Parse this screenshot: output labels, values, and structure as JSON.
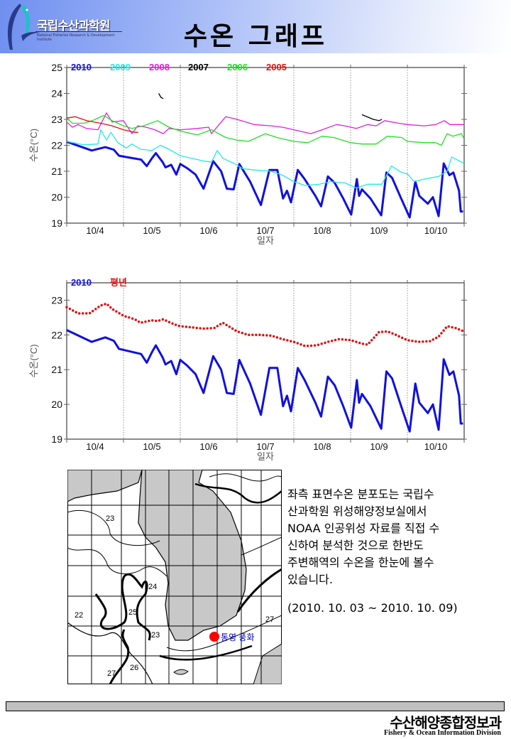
{
  "header": {
    "logo_text": "국립수산과학원",
    "logo_subtext": "National Fisheries Research & Development Institute",
    "title": "수온 그래프"
  },
  "chart_data": [
    {
      "type": "line",
      "title": "",
      "xlabel": "일자",
      "ylabel": "수온(°C)",
      "xlim": [
        "10/4 00:00",
        "10/11 00:00"
      ],
      "ylim": [
        19,
        25
      ],
      "yticks": [
        19,
        20,
        21,
        22,
        23,
        24,
        25
      ],
      "xtick_labels": [
        "10/4",
        "10/5",
        "10/6",
        "10/7",
        "10/8",
        "10/9",
        "10/10"
      ],
      "grid": "vertical dotted at day boundaries",
      "legend": "top-left",
      "x_unit": "day of October (decimal)",
      "series": [
        {
          "name": "2010",
          "color": "#1010e0",
          "width": 3,
          "x": [
            4.0,
            4.44,
            4.68,
            4.83,
            4.92,
            5.02,
            5.31,
            5.41,
            5.5,
            5.57,
            5.69,
            5.74,
            5.84,
            5.93,
            6.0,
            6.12,
            6.27,
            6.41,
            6.58,
            6.72,
            6.82,
            6.94,
            7.04,
            7.23,
            7.42,
            7.57,
            7.71,
            7.81,
            7.88,
            7.95,
            8.07,
            8.19,
            8.38,
            8.48,
            8.6,
            8.72,
            8.87,
            9.01,
            9.11,
            9.15,
            9.2,
            9.35,
            9.54,
            9.63,
            9.73,
            9.88,
            10.04,
            10.14,
            10.21,
            10.36,
            10.45,
            10.55,
            10.64,
            10.74,
            10.81,
            10.91,
            10.94,
            10.98
          ],
          "y": [
            22.14,
            21.8,
            21.93,
            21.83,
            21.6,
            21.56,
            21.45,
            21.2,
            21.5,
            21.7,
            21.35,
            21.15,
            21.25,
            20.87,
            21.28,
            21.12,
            20.87,
            20.33,
            21.39,
            21.0,
            20.33,
            20.3,
            21.28,
            20.6,
            19.7,
            21.05,
            21.05,
            19.95,
            20.25,
            19.8,
            21.05,
            20.7,
            20.05,
            19.65,
            20.8,
            20.55,
            19.95,
            19.33,
            20.7,
            20.05,
            20.3,
            19.95,
            19.3,
            20.95,
            20.75,
            20.0,
            19.22,
            20.6,
            20.05,
            19.75,
            20.0,
            19.27,
            21.3,
            20.85,
            20.95,
            20.25,
            19.45,
            19.45
          ]
        },
        {
          "name": "2009",
          "color": "#22e8e8",
          "width": 1.3,
          "x": [
            4.0,
            4.3,
            4.55,
            4.6,
            4.7,
            4.78,
            4.9,
            5.05,
            5.15,
            5.3,
            5.5,
            5.65,
            5.8,
            6.0,
            6.2,
            6.4,
            6.55,
            6.65,
            6.75,
            6.95,
            7.1,
            7.3,
            7.6,
            7.8,
            8.0,
            8.2,
            8.45,
            8.65,
            8.9,
            9.1,
            9.3,
            9.55,
            9.72,
            9.9,
            10.0,
            10.12,
            10.3,
            10.55,
            10.7,
            10.78,
            11.0
          ],
          "y": [
            22.15,
            22.02,
            22.05,
            22.6,
            22.2,
            22.5,
            22.1,
            21.9,
            22.05,
            21.85,
            21.8,
            22.0,
            21.85,
            21.6,
            21.5,
            21.4,
            21.35,
            21.8,
            21.5,
            21.3,
            21.1,
            21.05,
            21.0,
            20.85,
            20.6,
            20.45,
            20.5,
            20.6,
            20.55,
            20.35,
            20.5,
            20.5,
            21.2,
            20.95,
            20.9,
            20.6,
            20.7,
            20.8,
            21.0,
            21.55,
            21.3
          ]
        },
        {
          "name": "2008",
          "color": "#e020e0",
          "width": 1.3,
          "x": [
            4.0,
            4.1,
            4.2,
            4.35,
            4.55,
            4.7,
            4.8,
            5.0,
            5.15,
            5.25,
            5.4,
            5.55,
            5.7,
            5.8,
            6.0,
            6.3,
            6.5,
            6.55,
            6.8,
            7.0,
            7.3,
            7.6,
            7.8,
            8.0,
            8.3,
            8.5,
            8.75,
            8.9,
            9.1,
            9.3,
            9.45,
            9.6,
            9.85,
            10.0,
            10.3,
            10.5,
            10.65,
            10.75,
            11.0
          ],
          "y": [
            22.9,
            22.7,
            22.8,
            22.65,
            22.6,
            23.25,
            22.9,
            22.95,
            22.45,
            22.75,
            22.7,
            22.6,
            22.45,
            22.65,
            22.6,
            22.65,
            22.7,
            22.45,
            23.1,
            23.0,
            22.8,
            22.75,
            22.7,
            22.6,
            22.45,
            22.6,
            22.8,
            22.75,
            22.65,
            22.8,
            22.75,
            22.95,
            22.85,
            22.8,
            22.75,
            22.8,
            22.95,
            22.8,
            22.8
          ]
        },
        {
          "name": "2007",
          "color": "#000000",
          "width": 1.3,
          "segments": [
            {
              "x": [
                5.62,
                5.66,
                5.7
              ],
              "y": [
                24.0,
                23.85,
                23.8
              ]
            },
            {
              "x": [
                9.2,
                9.4,
                9.5,
                9.55
              ],
              "y": [
                23.18,
                23.0,
                22.95,
                23.0
              ]
            }
          ]
        },
        {
          "name": "2006",
          "color": "#20e020",
          "width": 1.3,
          "x": [
            4.0,
            4.1,
            4.3,
            4.45,
            4.65,
            4.8,
            5.0,
            5.15,
            5.35,
            5.6,
            5.8,
            6.0,
            6.3,
            6.55,
            6.8,
            7.0,
            7.2,
            7.5,
            7.7,
            8.0,
            8.25,
            8.5,
            8.7,
            9.0,
            9.2,
            9.45,
            9.65,
            9.9,
            10.0,
            10.3,
            10.5,
            10.6,
            10.7,
            10.8,
            10.95,
            11.0
          ],
          "y": [
            23.05,
            22.85,
            22.85,
            22.95,
            23.15,
            22.95,
            22.75,
            22.65,
            22.75,
            22.95,
            22.7,
            22.55,
            22.4,
            22.6,
            22.3,
            22.2,
            22.15,
            22.45,
            22.3,
            22.15,
            22.1,
            22.35,
            22.3,
            22.1,
            22.05,
            22.05,
            22.35,
            22.3,
            22.15,
            22.1,
            22.1,
            22.0,
            22.45,
            22.35,
            22.45,
            22.25
          ]
        },
        {
          "name": "2005",
          "color": "#e01010",
          "width": 1.3,
          "x": [
            4.0,
            4.15,
            4.35,
            4.6,
            4.8,
            5.0,
            5.2,
            5.26
          ],
          "y": [
            23.05,
            23.1,
            22.95,
            22.85,
            22.75,
            22.6,
            22.5,
            22.5
          ]
        }
      ]
    },
    {
      "type": "line",
      "title": "",
      "xlabel": "일자",
      "ylabel": "수온(°C)",
      "xlim": [
        "10/4 00:00",
        "10/11 00:00"
      ],
      "ylim": [
        19,
        23.5
      ],
      "yticks": [
        19,
        20,
        21,
        22,
        23
      ],
      "xtick_labels": [
        "10/4",
        "10/5",
        "10/6",
        "10/7",
        "10/8",
        "10/9",
        "10/10"
      ],
      "grid": "vertical dotted at day boundaries",
      "legend": "top-left",
      "x_unit": "day of October (decimal)",
      "series": [
        {
          "name": "2010",
          "color": "#1010e0",
          "width": 3,
          "x": [
            4.0,
            4.44,
            4.68,
            4.83,
            4.92,
            5.02,
            5.31,
            5.41,
            5.5,
            5.57,
            5.69,
            5.74,
            5.84,
            5.93,
            6.0,
            6.12,
            6.27,
            6.41,
            6.58,
            6.72,
            6.82,
            6.94,
            7.04,
            7.23,
            7.42,
            7.57,
            7.71,
            7.81,
            7.88,
            7.95,
            8.07,
            8.19,
            8.38,
            8.48,
            8.6,
            8.72,
            8.87,
            9.01,
            9.11,
            9.15,
            9.2,
            9.35,
            9.54,
            9.63,
            9.73,
            9.88,
            10.04,
            10.14,
            10.21,
            10.36,
            10.45,
            10.55,
            10.64,
            10.74,
            10.81,
            10.91,
            10.94,
            10.98
          ],
          "y": [
            22.14,
            21.8,
            21.93,
            21.83,
            21.6,
            21.56,
            21.45,
            21.2,
            21.5,
            21.7,
            21.35,
            21.15,
            21.25,
            20.87,
            21.28,
            21.12,
            20.87,
            20.33,
            21.39,
            21.0,
            20.33,
            20.3,
            21.28,
            20.6,
            19.7,
            21.05,
            21.05,
            19.95,
            20.25,
            19.8,
            21.05,
            20.7,
            20.05,
            19.65,
            20.8,
            20.55,
            19.95,
            19.33,
            20.7,
            20.05,
            20.3,
            19.95,
            19.3,
            20.95,
            20.75,
            20.0,
            19.22,
            20.6,
            20.05,
            19.75,
            20.0,
            19.27,
            21.3,
            20.85,
            20.95,
            20.25,
            19.45,
            19.45
          ]
        },
        {
          "name": "평년",
          "color": "#e01010",
          "width": 3.5,
          "style": "dots",
          "x": [
            4.0,
            4.2,
            4.4,
            4.6,
            4.7,
            4.8,
            5.0,
            5.2,
            5.3,
            5.5,
            5.6,
            5.7,
            5.9,
            6.0,
            6.2,
            6.4,
            6.6,
            6.75,
            7.0,
            7.2,
            7.4,
            7.6,
            7.8,
            8.0,
            8.2,
            8.4,
            8.6,
            8.8,
            9.0,
            9.2,
            9.3,
            9.5,
            9.65,
            9.8,
            10.0,
            10.2,
            10.4,
            10.55,
            10.7,
            10.85,
            11.0
          ],
          "y": [
            22.8,
            22.62,
            22.62,
            22.85,
            22.9,
            22.75,
            22.55,
            22.45,
            22.35,
            22.42,
            22.4,
            22.45,
            22.3,
            22.25,
            22.22,
            22.18,
            22.2,
            22.35,
            22.1,
            22.0,
            22.0,
            21.98,
            21.88,
            21.8,
            21.68,
            21.7,
            21.8,
            21.88,
            21.85,
            21.75,
            21.72,
            22.08,
            22.1,
            22.0,
            21.85,
            21.8,
            21.82,
            21.95,
            22.25,
            22.2,
            22.1
          ]
        }
      ]
    }
  ],
  "map": {
    "contour_labels": [
      "23",
      "24",
      "25",
      "22",
      "23",
      "27",
      "26",
      "27"
    ],
    "location_label": "통영 풍화",
    "marker_color": "#ff0000",
    "label_color": "#0000cc"
  },
  "description": {
    "lines": [
      "좌측 표면수온 분포도는 국립수",
      "산과학원 위성해양정보실에서",
      "NOAA 인공위성 자료를 직접 수",
      "신하여 분석한 것으로  한반도",
      "주변해역의 수온을 한눈에 볼수",
      "있습니다."
    ],
    "period": "(2010. 10. 03 ~ 2010. 10. 09)"
  },
  "footer": {
    "division_ko": "수산해양종합정보과",
    "division_en": "Fishery & Ocean Information Division"
  }
}
